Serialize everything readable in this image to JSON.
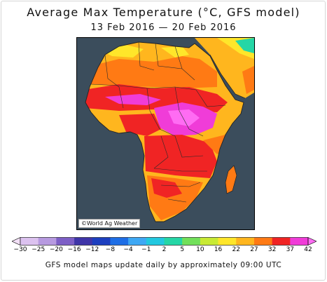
{
  "header": {
    "title": "Average Max Temperature (°C, GFS model)",
    "date_range": "13 Feb 2016 — 20 Feb 2016"
  },
  "map": {
    "region": "Africa",
    "ocean_color": "#3b4d5c",
    "credit": "©World Ag Weather"
  },
  "legend": {
    "ticks": [
      "−30",
      "−25",
      "−20",
      "−16",
      "−12",
      "−8",
      "−4",
      "−1",
      "2",
      "5",
      "10",
      "16",
      "22",
      "27",
      "32",
      "37",
      "42"
    ],
    "colors": [
      "#f2dff6",
      "#dcc2ef",
      "#b79ae0",
      "#7d5fc6",
      "#3f35a8",
      "#1d3fbf",
      "#1e6ee6",
      "#3ea8f4",
      "#22c8e0",
      "#25d6a6",
      "#72e05a",
      "#c8ea34",
      "#ffe62a",
      "#ffb61e",
      "#ff7a14",
      "#f02424",
      "#f03cd8",
      "#ff6cf3"
    ]
  },
  "footer": {
    "note": "GFS model maps update daily by approximately 09:00 UTC"
  }
}
